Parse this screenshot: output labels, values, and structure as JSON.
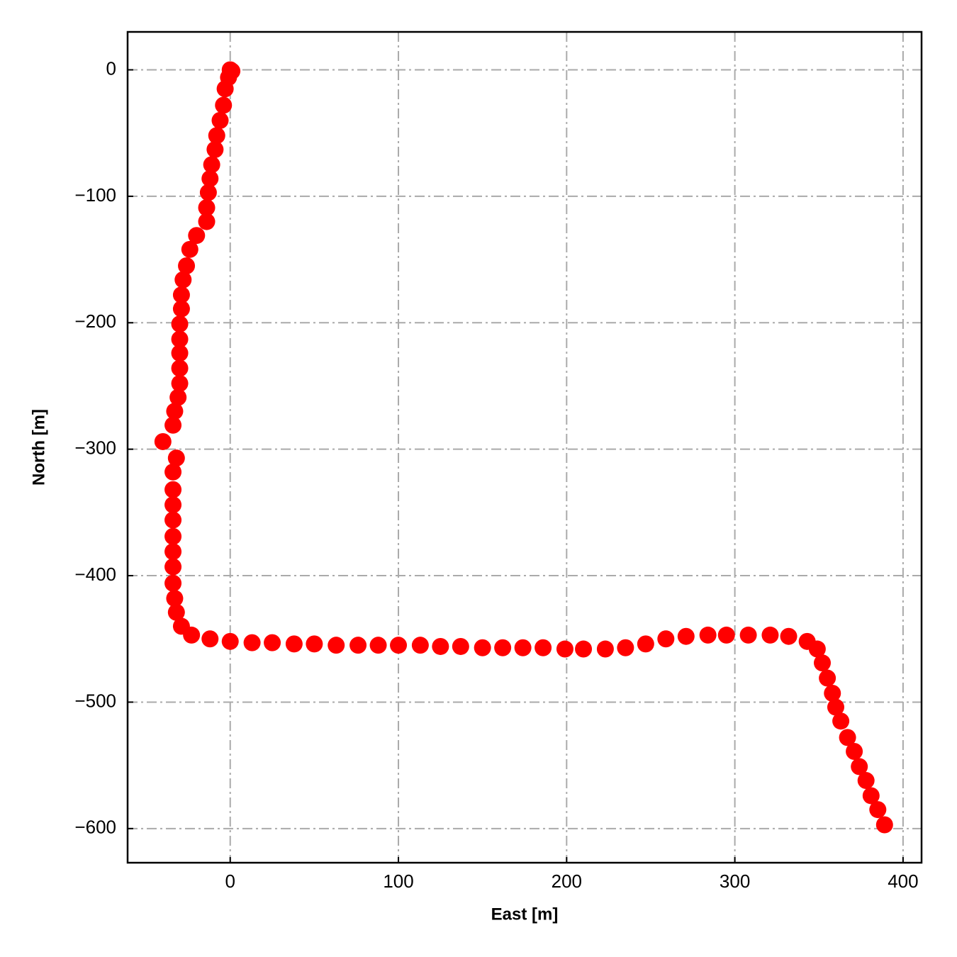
{
  "chart_data": {
    "type": "scatter",
    "xlabel": "East [m]",
    "ylabel": "North [m]",
    "color": "#ff0000",
    "grid": true,
    "xlim": [
      -61,
      411
    ],
    "ylim": [
      -627,
      30
    ],
    "xticks": [
      0,
      100,
      200,
      300,
      400
    ],
    "yticks": [
      {
        "value": -600,
        "label": "−600"
      },
      {
        "value": -500,
        "label": "−500"
      },
      {
        "value": -400,
        "label": "−400"
      },
      {
        "value": -300,
        "label": "−300"
      },
      {
        "value": -200,
        "label": "−200"
      },
      {
        "value": -100,
        "label": "−100"
      },
      0
    ],
    "x": [
      0,
      1,
      -1,
      -3,
      -4,
      -6,
      -8,
      -9,
      -11,
      -12,
      -13,
      -14,
      -14,
      -20,
      -24,
      -26,
      -28,
      -29,
      -29,
      -30,
      -30,
      -30,
      -30,
      -30,
      -31,
      -33,
      -34,
      -40,
      -32,
      -34,
      -34,
      -34,
      -34,
      -34,
      -34,
      -34,
      -34,
      -33,
      -32,
      -29,
      -23,
      -12,
      0,
      13,
      25,
      38,
      50,
      63,
      76,
      88,
      100,
      113,
      125,
      137,
      150,
      162,
      174,
      186,
      199,
      210,
      223,
      235,
      247,
      259,
      271,
      284,
      295,
      308,
      321,
      332,
      343,
      349,
      352,
      355,
      358,
      360,
      363,
      367,
      371,
      374,
      378,
      381,
      385,
      389
    ],
    "y": [
      0,
      -1,
      -6,
      -15,
      -28,
      -40,
      -52,
      -63,
      -75,
      -86,
      -97,
      -109,
      -120,
      -131,
      -142,
      -155,
      -166,
      -178,
      -189,
      -201,
      -213,
      -224,
      -236,
      -248,
      -259,
      -270,
      -281,
      -294,
      -307,
      -318,
      -332,
      -344,
      -356,
      -369,
      -381,
      -393,
      -406,
      -418,
      -429,
      -440,
      -447,
      -450,
      -452,
      -453,
      -453,
      -454,
      -454,
      -455,
      -455,
      -455,
      -455,
      -455,
      -456,
      -456,
      -457,
      -457,
      -457,
      -457,
      -458,
      -458,
      -458,
      -457,
      -454,
      -450,
      -448,
      -447,
      -447,
      -447,
      -447,
      -448,
      -452,
      -458,
      -469,
      -481,
      -493,
      -504,
      -515,
      -528,
      -539,
      -551,
      -562,
      -574,
      -585,
      -597
    ]
  }
}
